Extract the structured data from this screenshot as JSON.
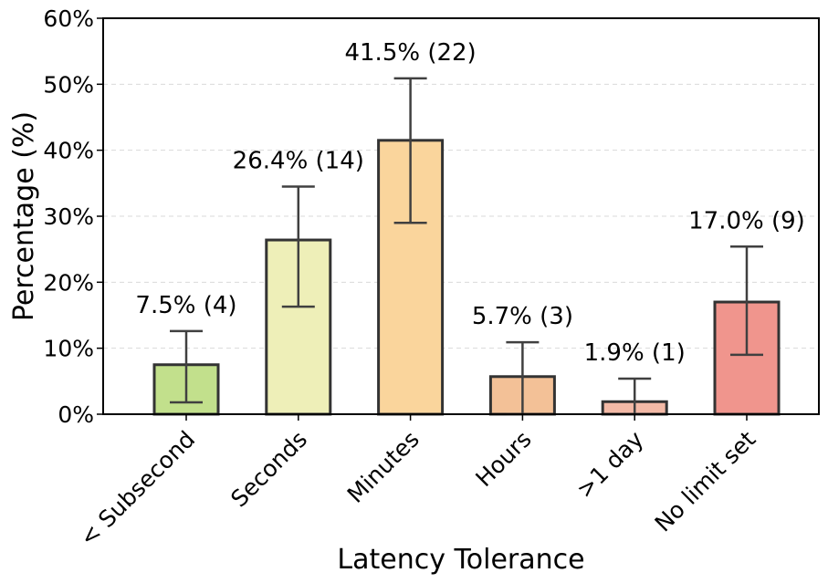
{
  "chart_data": {
    "type": "bar",
    "title": "",
    "xlabel": "Latency Tolerance",
    "ylabel": "Percentage (%)",
    "ylim": [
      0,
      60
    ],
    "yticks": [
      0,
      10,
      20,
      30,
      40,
      50,
      60
    ],
    "ytick_labels": [
      "0%",
      "10%",
      "20%",
      "30%",
      "40%",
      "50%",
      "60%"
    ],
    "grid": "horizontal dashed",
    "categories": [
      "< Subsecond",
      "Seconds",
      "Minutes",
      "Hours",
      ">1 day",
      "No limit set"
    ],
    "values": [
      7.5,
      26.4,
      41.5,
      5.7,
      1.9,
      17.0
    ],
    "counts": [
      4,
      14,
      22,
      3,
      1,
      9
    ],
    "error_low": [
      1.8,
      16.3,
      29.0,
      0.0,
      0.0,
      9.0
    ],
    "error_high": [
      12.6,
      34.5,
      50.9,
      10.9,
      5.4,
      25.4
    ],
    "data_labels": [
      "7.5% (4)",
      "26.4% (14)",
      "41.5% (22)",
      "5.7% (3)",
      "1.9% (1)",
      "17.0% (9)"
    ],
    "colors": [
      "#c2e08c",
      "#eeefb8",
      "#fad59c",
      "#f3c197",
      "#f3b9a6",
      "#f0958d"
    ]
  }
}
